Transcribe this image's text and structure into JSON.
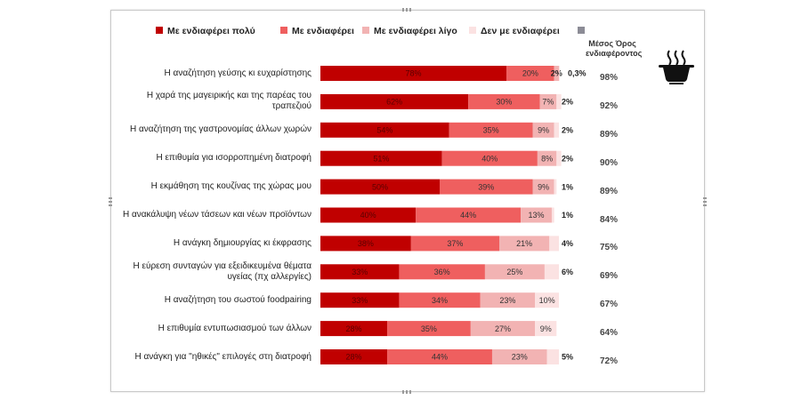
{
  "chart_data": {
    "type": "bar",
    "orientation": "horizontal",
    "stacked": true,
    "legend_position": "top",
    "grid": false,
    "categories": [
      "Η αναζήτηση γεύσης κι ευχαρίστησης",
      "Η χαρά της μαγειρικής και της παρέας του τραπεζιού",
      "Η αναζήτηση της γαστρονομίας άλλων χωρών",
      "Η επιθυμία για ισορροπημένη διατροφή",
      "Η εκμάθηση της κουζίνας της χώρας μου",
      "Η ανακάλυψη νέων τάσεων και νέων προϊόντων",
      "Η ανάγκη δημιουργίας κι έκφρασης",
      "Η εύρεση συνταγών για εξειδικευμένα θέματα υγείας (πχ αλλεργίες)",
      "Η αναζήτηση του σωστού foodpairing",
      "Η επιθυμία εντυπωσιασμού των άλλων",
      "Η ανάγκη για \"ηθικές\" επιλογές στη διατροφή"
    ],
    "category_lines": [
      [
        "Η αναζήτηση γεύσης κι ευχαρίστησης"
      ],
      [
        "Η χαρά της μαγειρικής και της παρέας του",
        "τραπεζιού"
      ],
      [
        "Η αναζήτηση της γαστρονομίας άλλων χωρών"
      ],
      [
        "Η επιθυμία για ισορροπημένη διατροφή"
      ],
      [
        "Η εκμάθηση της κουζίνας της χώρας μου"
      ],
      [
        "Η ανακάλυψη νέων τάσεων και νέων προϊόντων"
      ],
      [
        "Η ανάγκη δημιουργίας κι έκφρασης"
      ],
      [
        "Η εύρεση συνταγών για εξειδικευμένα θέματα",
        "υγείας (πχ αλλεργίες)"
      ],
      [
        "Η αναζήτηση του σωστού foodpairing"
      ],
      [
        "Η επιθυμία εντυπωσιασμού των άλλων"
      ],
      [
        "Η ανάγκη για \"ηθικές\" επιλογές στη διατροφή"
      ]
    ],
    "series": [
      {
        "name": "Με ενδιαφέρει πολύ",
        "color": "#c00000",
        "values": [
          78,
          62,
          54,
          51,
          50,
          40,
          38,
          33,
          33,
          28,
          28
        ],
        "labels": [
          "78%",
          "62%",
          "54%",
          "51%",
          "50%",
          "40%",
          "38%",
          "33%",
          "33%",
          "28%",
          "28%"
        ]
      },
      {
        "name": "Με ενδιαφέρει",
        "color": "#ef5f5f",
        "values": [
          20,
          30,
          35,
          40,
          39,
          44,
          37,
          36,
          34,
          35,
          44
        ],
        "labels": [
          "20%",
          "30%",
          "35%",
          "40%",
          "39%",
          "44%",
          "37%",
          "36%",
          "34%",
          "35%",
          "44%"
        ]
      },
      {
        "name": "Με ενδιαφέρει λίγο",
        "color": "#f2b3b3",
        "values": [
          2,
          7,
          9,
          8,
          9,
          13,
          21,
          25,
          23,
          27,
          23
        ],
        "labels": [
          "2%",
          "7%",
          "9%",
          "8%",
          "9%",
          "13%",
          "21%",
          "25%",
          "23%",
          "27%",
          "23%"
        ]
      },
      {
        "name": "Δεν με ενδιαφέρει",
        "color": "#fbe2e2",
        "values": [
          0.3,
          2,
          2,
          2,
          1,
          1,
          4,
          6,
          10,
          9,
          5
        ],
        "labels": [
          "0,3%",
          "2%",
          "2%",
          "2%",
          "1%",
          "1%",
          "4%",
          "6%",
          "10%",
          "9%",
          "5%"
        ]
      }
    ],
    "extra_legend_color": "#8c8c96",
    "average_header": [
      "Μέσος Όρος",
      "ενδιαφέροντος"
    ],
    "averages": [
      "98%",
      "92%",
      "89%",
      "90%",
      "89%",
      "84%",
      "75%",
      "69%",
      "67%",
      "64%",
      "72%"
    ],
    "xlim": [
      0,
      100
    ],
    "icon": "cooking-pot-icon"
  }
}
